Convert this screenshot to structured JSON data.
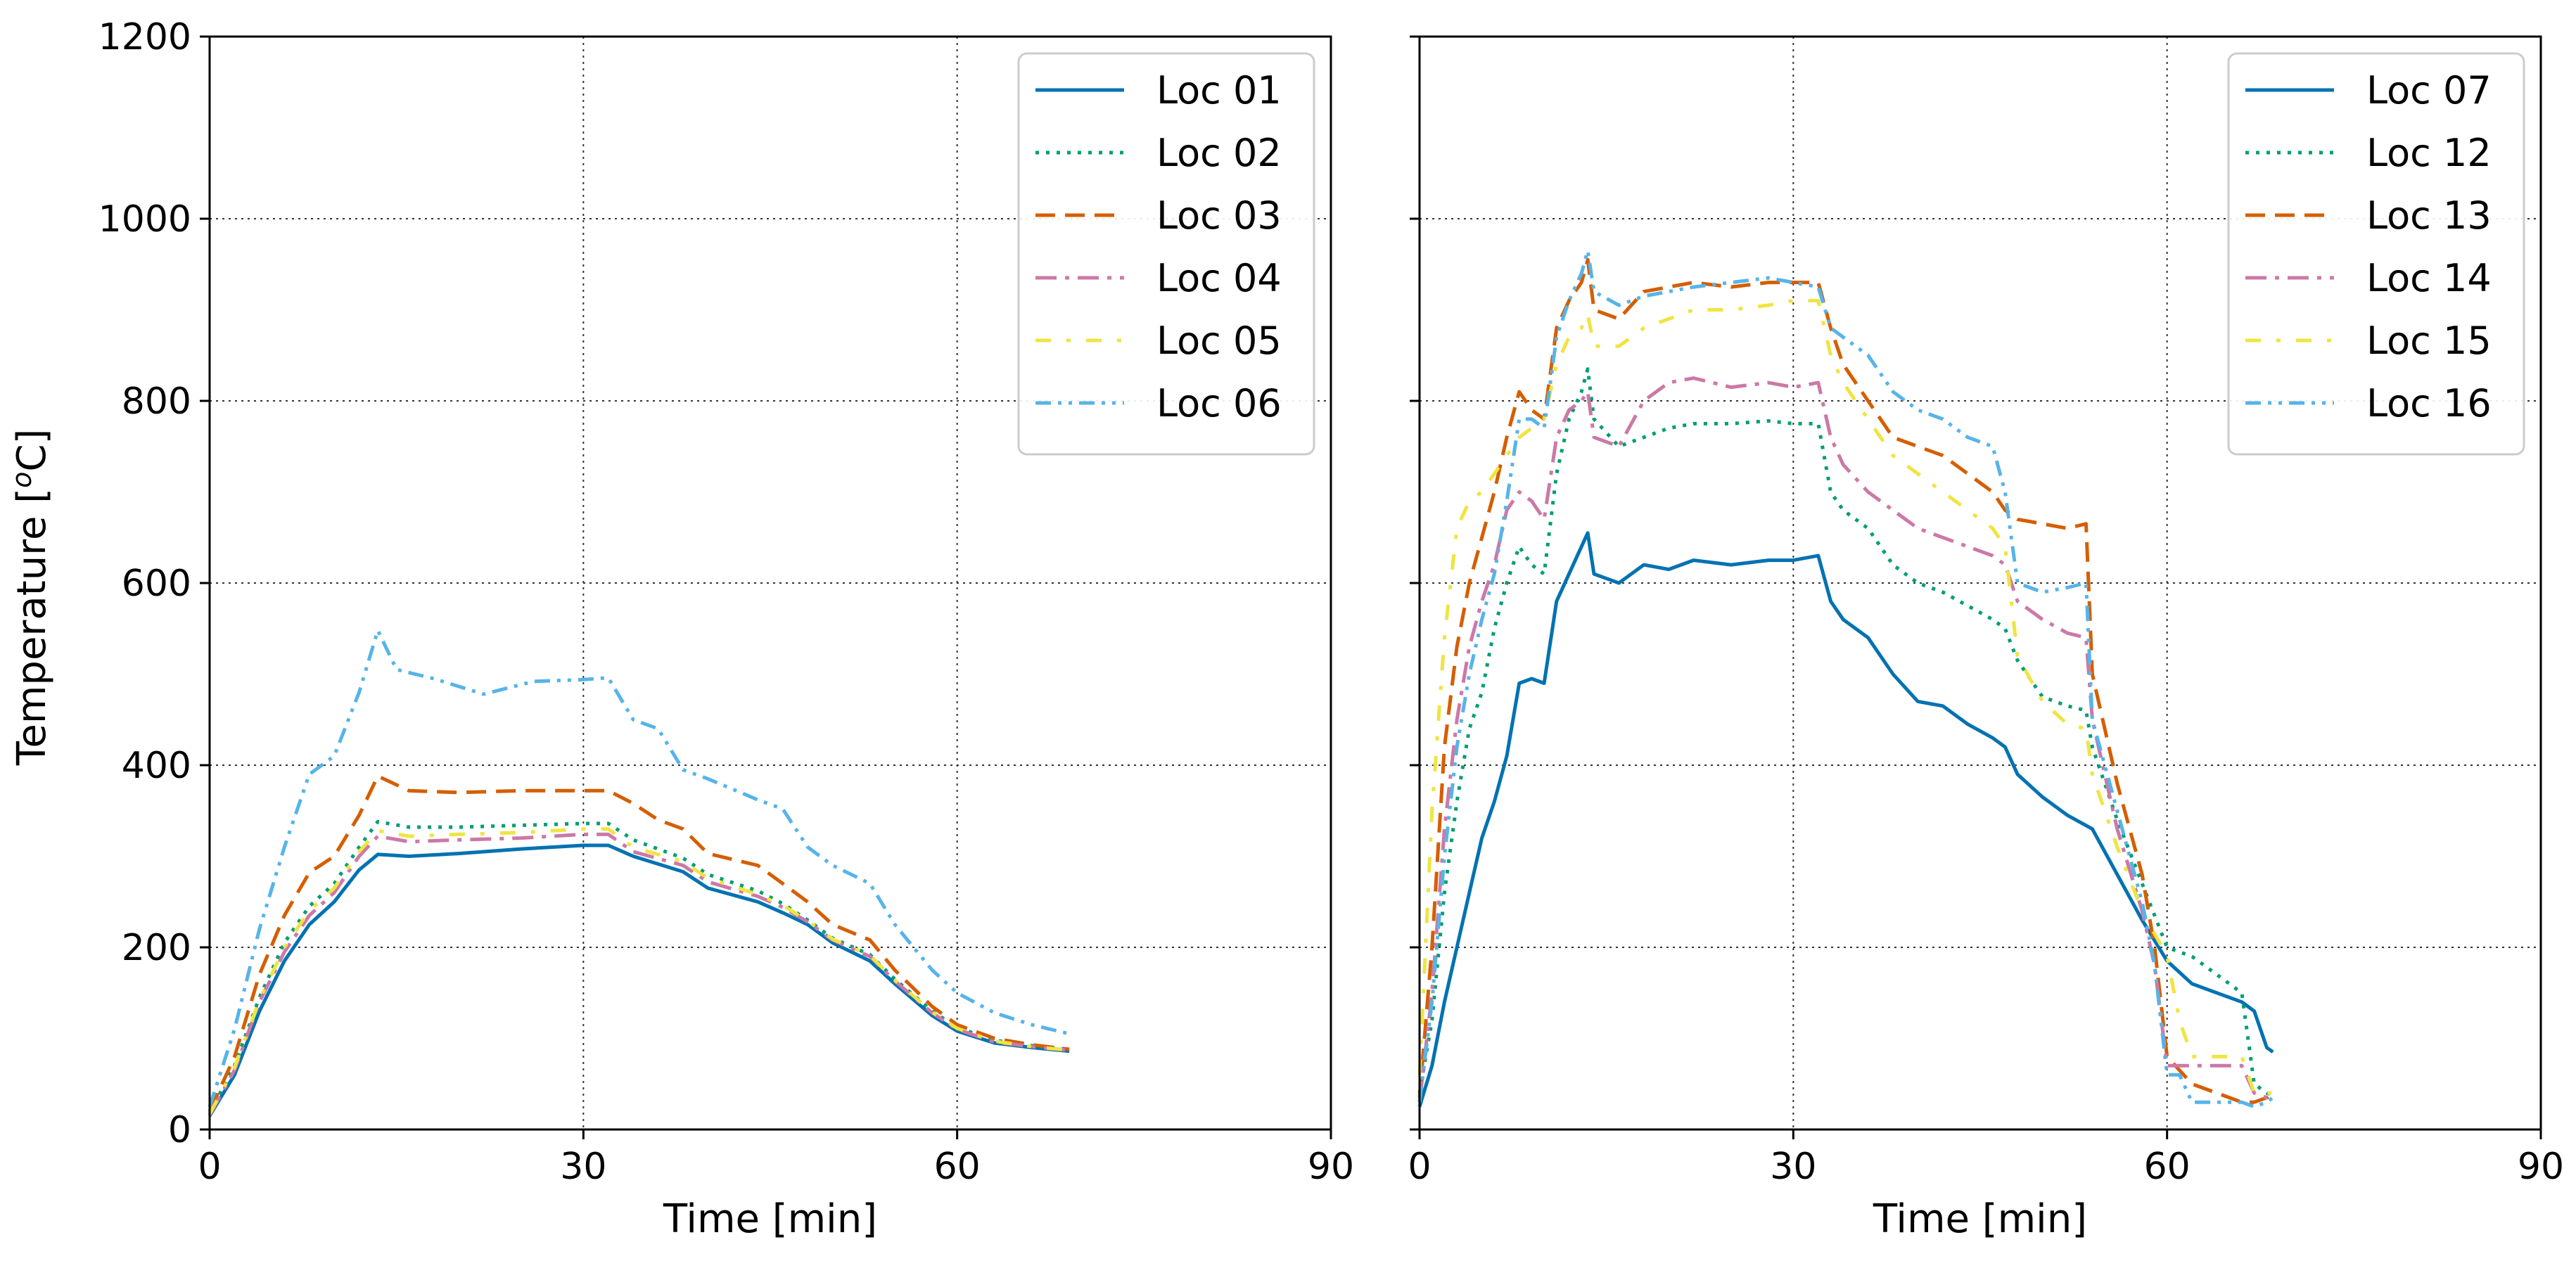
{
  "chart_data": [
    {
      "type": "line",
      "title": "",
      "xlabel": "Time [min]",
      "ylabel_prefix": "Temperature [",
      "ylabel_sup": "o",
      "ylabel_suffix": "C]",
      "xlim": [
        0,
        90
      ],
      "ylim": [
        0,
        1200
      ],
      "xticks": [
        0,
        30,
        60,
        90
      ],
      "yticks": [
        0,
        200,
        400,
        600,
        800,
        1000,
        1200
      ],
      "xtick_labels": [
        "0",
        "30",
        "60",
        "90"
      ],
      "ytick_labels": [
        "0",
        "200",
        "400",
        "600",
        "800",
        "1000",
        "1200"
      ],
      "grid": true,
      "legend_position": "top-right",
      "series": [
        {
          "name": "Loc 01",
          "color": "#0072B2",
          "dash": "solid",
          "x": [
            0,
            2,
            4,
            6,
            8,
            10,
            12,
            13.5,
            16,
            20,
            25,
            30,
            32,
            34,
            38,
            40,
            44,
            46,
            48,
            50,
            53,
            55,
            58,
            60,
            63,
            66,
            69
          ],
          "y": [
            15,
            60,
            130,
            185,
            225,
            250,
            285,
            302,
            300,
            303,
            308,
            312,
            312,
            300,
            283,
            265,
            250,
            238,
            225,
            205,
            185,
            160,
            125,
            108,
            95,
            90,
            86
          ]
        },
        {
          "name": "Loc 02",
          "color": "#009E73",
          "dash": "dotted",
          "x": [
            0,
            2,
            4,
            6,
            8,
            10,
            12,
            13.5,
            16,
            20,
            25,
            30,
            32,
            34,
            38,
            40,
            44,
            46,
            48,
            50,
            53,
            55,
            58,
            60,
            63,
            66,
            69
          ],
          "y": [
            18,
            70,
            145,
            205,
            245,
            270,
            310,
            338,
            332,
            332,
            334,
            336,
            336,
            318,
            298,
            280,
            262,
            248,
            230,
            210,
            192,
            165,
            130,
            112,
            98,
            92,
            88
          ]
        },
        {
          "name": "Loc 03",
          "color": "#D55E00",
          "dash": "dashed",
          "x": [
            0,
            2,
            4,
            6,
            8,
            10,
            12,
            13.5,
            16,
            20,
            25,
            30,
            32,
            34,
            36,
            38,
            40,
            44,
            46,
            48,
            50,
            53,
            55,
            58,
            60,
            63,
            66,
            69
          ],
          "y": [
            20,
            80,
            170,
            235,
            282,
            300,
            345,
            388,
            372,
            370,
            372,
            372,
            372,
            358,
            340,
            330,
            303,
            290,
            270,
            250,
            225,
            208,
            175,
            135,
            115,
            100,
            93,
            88
          ]
        },
        {
          "name": "Loc 04",
          "color": "#CC79A7",
          "dash": "dashdot",
          "x": [
            0,
            2,
            4,
            6,
            8,
            10,
            12,
            13.5,
            16,
            20,
            25,
            30,
            32,
            34,
            38,
            40,
            44,
            46,
            48,
            50,
            53,
            55,
            58,
            60,
            63,
            66,
            69
          ],
          "y": [
            16,
            65,
            140,
            195,
            235,
            260,
            300,
            322,
            316,
            318,
            320,
            324,
            324,
            305,
            290,
            272,
            256,
            244,
            228,
            208,
            190,
            163,
            128,
            110,
            96,
            91,
            87
          ]
        },
        {
          "name": "Loc 05",
          "color": "#F0E442",
          "dash": "loosedashdot",
          "x": [
            0,
            2,
            4,
            6,
            8,
            10,
            12,
            13.5,
            16,
            20,
            25,
            30,
            32,
            34,
            38,
            40,
            44,
            46,
            48,
            50,
            53,
            55,
            58,
            60,
            63,
            66,
            69
          ],
          "y": [
            17,
            68,
            142,
            200,
            240,
            265,
            305,
            328,
            322,
            324,
            326,
            330,
            330,
            310,
            294,
            276,
            258,
            246,
            229,
            209,
            191,
            164,
            129,
            111,
            97,
            91,
            87
          ]
        },
        {
          "name": "Loc 06",
          "color": "#56B4E9",
          "dash": "dashdotdot",
          "x": [
            0,
            2,
            4,
            6,
            8,
            10,
            12,
            13.5,
            15,
            18,
            22,
            26,
            30,
            32,
            34,
            36,
            38,
            40,
            44,
            46,
            48,
            50,
            53,
            55,
            58,
            60,
            63,
            66,
            69
          ],
          "y": [
            25,
            110,
            220,
            310,
            390,
            410,
            480,
            548,
            505,
            495,
            478,
            492,
            494,
            496,
            450,
            440,
            395,
            385,
            362,
            352,
            310,
            290,
            270,
            225,
            175,
            150,
            128,
            115,
            105
          ]
        }
      ]
    },
    {
      "type": "line",
      "title": "",
      "xlabel": "Time [min]",
      "xlim": [
        0,
        90
      ],
      "ylim": [
        0,
        1200
      ],
      "xticks": [
        0,
        30,
        60,
        90
      ],
      "yticks": [
        0,
        200,
        400,
        600,
        800,
        1000,
        1200
      ],
      "xtick_labels": [
        "0",
        "30",
        "60",
        "90"
      ],
      "grid": true,
      "legend_position": "top-right",
      "series": [
        {
          "name": "Loc 07",
          "color": "#0072B2",
          "dash": "solid",
          "x": [
            0,
            1,
            2,
            3,
            4,
            5,
            6,
            7,
            8,
            9,
            10,
            11,
            12,
            13,
            13.5,
            14,
            16,
            18,
            20,
            22,
            25,
            28,
            30,
            32,
            33,
            34,
            36,
            38,
            40,
            42,
            44,
            46,
            47,
            48,
            50,
            52,
            54,
            56,
            58,
            60,
            62,
            64,
            66,
            67,
            68,
            68.5
          ],
          "y": [
            25,
            70,
            140,
            200,
            260,
            320,
            360,
            410,
            490,
            495,
            490,
            580,
            610,
            640,
            655,
            610,
            600,
            620,
            615,
            625,
            620,
            625,
            625,
            630,
            580,
            560,
            540,
            500,
            470,
            465,
            445,
            430,
            420,
            390,
            365,
            345,
            330,
            280,
            230,
            185,
            160,
            150,
            140,
            130,
            90,
            85
          ]
        },
        {
          "name": "Loc 12",
          "color": "#009E73",
          "dash": "dotted",
          "x": [
            0,
            1,
            2,
            3,
            4,
            5,
            6,
            7,
            8,
            9,
            10,
            11,
            12,
            13,
            13.5,
            14,
            16,
            18,
            20,
            22,
            25,
            28,
            30,
            32,
            33,
            34,
            36,
            38,
            40,
            42,
            44,
            46,
            47,
            48,
            50,
            52,
            53.5,
            54,
            56,
            58,
            60,
            62,
            64,
            66,
            67,
            68,
            68.5
          ],
          "y": [
            40,
            120,
            260,
            360,
            440,
            480,
            550,
            600,
            640,
            620,
            610,
            720,
            780,
            810,
            835,
            780,
            750,
            760,
            770,
            775,
            775,
            778,
            775,
            775,
            700,
            680,
            660,
            620,
            600,
            590,
            575,
            560,
            550,
            515,
            475,
            465,
            460,
            420,
            340,
            270,
            200,
            190,
            170,
            150,
            50,
            40,
            38
          ]
        },
        {
          "name": "Loc 13",
          "color": "#D55E00",
          "dash": "dashed",
          "x": [
            0,
            1,
            2,
            3,
            4,
            5,
            6,
            7,
            8,
            9,
            10,
            11,
            12,
            13,
            13.5,
            14,
            16,
            18,
            20,
            22,
            25,
            28,
            30,
            32,
            33,
            34,
            36,
            38,
            40,
            42,
            44,
            46,
            47,
            48,
            50,
            52,
            53.5,
            54,
            56,
            58,
            59,
            60,
            62,
            64,
            66,
            67,
            68,
            68.5
          ],
          "y": [
            35,
            200,
            420,
            530,
            600,
            650,
            700,
            760,
            810,
            790,
            780,
            880,
            910,
            930,
            955,
            900,
            890,
            920,
            925,
            930,
            925,
            930,
            930,
            930,
            880,
            840,
            800,
            760,
            750,
            740,
            720,
            700,
            680,
            670,
            665,
            660,
            665,
            500,
            380,
            280,
            200,
            80,
            50,
            40,
            30,
            30,
            35,
            40
          ]
        },
        {
          "name": "Loc 14",
          "color": "#CC79A7",
          "dash": "dashdot",
          "x": [
            0,
            1,
            2,
            3,
            4,
            5,
            6,
            7,
            8,
            9,
            10,
            11,
            12,
            13,
            13.5,
            14,
            16,
            18,
            20,
            22,
            25,
            28,
            30,
            32,
            33,
            34,
            36,
            38,
            40,
            42,
            44,
            46,
            47,
            48,
            50,
            52,
            53.5,
            54,
            56,
            58,
            59,
            60,
            62,
            64,
            66,
            67,
            68,
            68.5
          ],
          "y": [
            30,
            150,
            330,
            450,
            530,
            580,
            620,
            680,
            700,
            690,
            670,
            760,
            790,
            800,
            810,
            760,
            750,
            800,
            820,
            825,
            815,
            820,
            815,
            820,
            760,
            730,
            700,
            680,
            660,
            650,
            640,
            630,
            620,
            580,
            560,
            545,
            540,
            450,
            330,
            240,
            180,
            70,
            70,
            70,
            70,
            40,
            35,
            35
          ]
        },
        {
          "name": "Loc 15",
          "color": "#F0E442",
          "dash": "loosedashdot",
          "x": [
            0,
            1,
            2,
            3,
            4,
            5,
            6,
            7,
            8,
            9,
            10,
            11,
            12,
            13,
            13.5,
            14,
            16,
            18,
            20,
            22,
            25,
            28,
            30,
            32,
            33,
            34,
            36,
            38,
            40,
            42,
            44,
            46,
            47,
            48,
            50,
            52,
            53.5,
            54,
            56,
            58,
            60,
            61,
            62,
            64,
            66,
            67,
            68,
            68.5
          ],
          "y": [
            60,
            350,
            540,
            660,
            690,
            700,
            720,
            740,
            760,
            770,
            780,
            840,
            870,
            880,
            895,
            860,
            860,
            880,
            890,
            900,
            900,
            905,
            910,
            910,
            850,
            820,
            780,
            740,
            720,
            700,
            680,
            660,
            640,
            520,
            470,
            445,
            440,
            390,
            310,
            240,
            190,
            120,
            80,
            80,
            80,
            40,
            40,
            40
          ]
        },
        {
          "name": "Loc 16",
          "color": "#56B4E9",
          "dash": "dashdotdot",
          "x": [
            0,
            1,
            2,
            3,
            4,
            5,
            6,
            7,
            8,
            9,
            10,
            11,
            12,
            13,
            13.5,
            14,
            16,
            18,
            20,
            22,
            25,
            28,
            30,
            32,
            33,
            34,
            36,
            38,
            40,
            42,
            44,
            46,
            47,
            48,
            50,
            52,
            53.5,
            54,
            56,
            58,
            59,
            60,
            61,
            62,
            64,
            66,
            67,
            68,
            68.5
          ],
          "y": [
            30,
            140,
            300,
            420,
            500,
            560,
            610,
            690,
            780,
            780,
            770,
            870,
            910,
            940,
            965,
            920,
            905,
            915,
            920,
            925,
            930,
            935,
            930,
            925,
            880,
            870,
            850,
            810,
            790,
            780,
            760,
            750,
            700,
            600,
            590,
            595,
            600,
            450,
            350,
            250,
            180,
            60,
            60,
            30,
            30,
            30,
            25,
            30,
            35
          ]
        }
      ]
    }
  ]
}
